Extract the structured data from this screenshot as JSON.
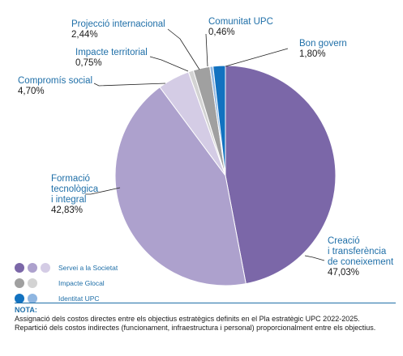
{
  "chart_data": {
    "type": "pie",
    "title": "",
    "slices": [
      {
        "name": "Creació i transferència de coneixement",
        "value": 47.03,
        "label": "47,03%",
        "color": "#7b67a8"
      },
      {
        "name": "Formació tecnològica i integral",
        "value": 42.83,
        "label": "42,83%",
        "color": "#ada1cd"
      },
      {
        "name": "Compromís social",
        "value": 4.7,
        "label": "4,70%",
        "color": "#d4cce5"
      },
      {
        "name": "Impacte territorial",
        "value": 0.75,
        "label": "0,75%",
        "color": "#d3d3d3"
      },
      {
        "name": "Projecció internacional",
        "value": 2.44,
        "label": "2,44%",
        "color": "#a0a0a0"
      },
      {
        "name": "Comunitat UPC",
        "value": 0.46,
        "label": "0,46%",
        "color": "#8fb6e1"
      },
      {
        "name": "Bon govern",
        "value": 1.8,
        "label": "1,80%",
        "color": "#1272c0"
      }
    ],
    "legend_placement": "bottom-left",
    "legend": [
      {
        "label": "Servei a la Societat",
        "colors": [
          "#7b67a8",
          "#ada1cd",
          "#d4cce5"
        ]
      },
      {
        "label": "Impacte Glocal",
        "colors": [
          "#a0a0a0",
          "#d3d3d3"
        ]
      },
      {
        "label": "Identitat UPC",
        "colors": [
          "#1272c0",
          "#8fb6e1"
        ]
      }
    ]
  },
  "labels": {
    "projeccio": {
      "name": "Projecció internacional",
      "pct": "2,44%"
    },
    "comunitat": {
      "name": "Comunitat UPC",
      "pct": "0,46%"
    },
    "bon_govern": {
      "name": "Bon govern",
      "pct": "1,80%"
    },
    "impacte": {
      "name": "Impacte territorial",
      "pct": "0,75%"
    },
    "compromis": {
      "name": "Compromís social",
      "pct": "4,70%"
    },
    "formacio": {
      "line1": "Formació",
      "line2": "tecnològica",
      "line3": "i integral",
      "pct": "42,83%"
    },
    "creacio": {
      "line1": "Creació",
      "line2": "i transferència",
      "line3": "de coneixement",
      "pct": "47,03%"
    }
  },
  "note": {
    "title": "NOTA:",
    "line1": "Assignació dels costos directes entre els objectius estratègics definits en el Pla estratègic UPC 2022-2025.",
    "line2": "Repartició dels costos indirectes (funcionament, infraestructura i personal) proporcionalment entre els objectius."
  }
}
